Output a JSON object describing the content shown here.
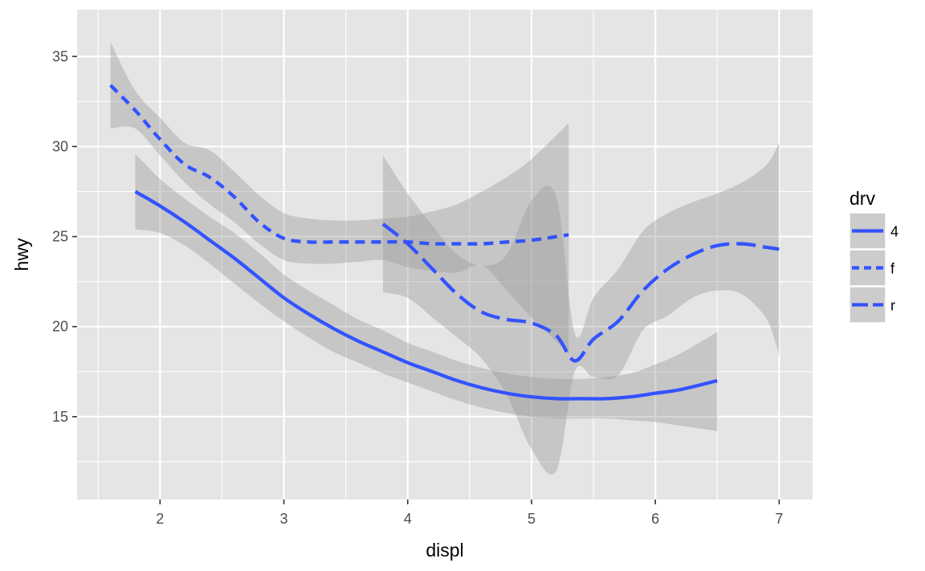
{
  "chart_data": {
    "type": "line",
    "xlabel": "displ",
    "ylabel": "hwy",
    "xlim": [
      1.33,
      7.27
    ],
    "ylim": [
      10.4,
      37.6
    ],
    "x_ticks": [
      2,
      3,
      4,
      5,
      6,
      7
    ],
    "y_ticks": [
      15,
      20,
      25,
      30,
      35
    ],
    "x_tick_labels": [
      "2",
      "3",
      "4",
      "5",
      "6",
      "7"
    ],
    "y_tick_labels": [
      "15",
      "20",
      "25",
      "30",
      "35"
    ],
    "grid": true,
    "panel_background": "#e5e5e5",
    "grid_color": "#ffffff",
    "line_color": "#3353ff",
    "ribbon_color": "#999999",
    "legend": {
      "title": "drv",
      "position": "right",
      "entries": [
        {
          "label": "4",
          "linetype": "solid"
        },
        {
          "label": "f",
          "linetype": "dashed"
        },
        {
          "label": "r",
          "linetype": "longdash"
        }
      ]
    },
    "series": [
      {
        "name": "4",
        "linetype": "solid",
        "x": [
          1.8,
          2.0,
          2.2,
          2.4,
          2.6,
          2.8,
          3.0,
          3.2,
          3.4,
          3.6,
          3.8,
          4.0,
          4.2,
          4.4,
          4.6,
          4.8,
          5.0,
          5.2,
          5.4,
          5.6,
          5.8,
          6.0,
          6.2,
          6.5
        ],
        "y": [
          27.5,
          26.7,
          25.8,
          24.8,
          23.8,
          22.7,
          21.6,
          20.7,
          19.9,
          19.2,
          18.6,
          18.0,
          17.5,
          17.0,
          16.6,
          16.3,
          16.1,
          16.0,
          16.0,
          16.0,
          16.1,
          16.3,
          16.5,
          17.0
        ],
        "lower": [
          25.4,
          25.2,
          24.5,
          23.5,
          22.4,
          21.3,
          20.3,
          19.4,
          18.6,
          18.0,
          17.4,
          16.9,
          16.4,
          15.9,
          15.5,
          15.2,
          15.0,
          14.9,
          14.9,
          14.9,
          14.8,
          14.7,
          14.5,
          14.2
        ],
        "upper": [
          29.6,
          28.2,
          27.1,
          26.1,
          25.2,
          24.1,
          22.9,
          22.0,
          21.2,
          20.4,
          19.8,
          19.1,
          18.6,
          18.1,
          17.7,
          17.4,
          17.2,
          17.1,
          17.1,
          17.2,
          17.4,
          17.9,
          18.5,
          19.7
        ]
      },
      {
        "name": "f",
        "linetype": "dashed",
        "x": [
          1.6,
          1.8,
          2.0,
          2.2,
          2.4,
          2.6,
          2.8,
          3.0,
          3.2,
          3.4,
          3.6,
          3.8,
          4.0,
          4.2,
          4.4,
          4.6,
          4.8,
          5.0,
          5.3
        ],
        "y": [
          33.4,
          32.0,
          30.4,
          29.0,
          28.3,
          27.2,
          25.8,
          24.9,
          24.7,
          24.7,
          24.7,
          24.7,
          24.7,
          24.6,
          24.6,
          24.6,
          24.7,
          24.8,
          25.1
        ],
        "lower": [
          31.0,
          31.0,
          29.5,
          28.0,
          26.8,
          25.8,
          24.6,
          23.7,
          23.5,
          23.5,
          23.6,
          23.7,
          23.3,
          23.1,
          23.0,
          23.4,
          22.0,
          20.5,
          18.5
        ],
        "upper": [
          35.8,
          33.1,
          31.6,
          30.2,
          29.8,
          28.6,
          27.3,
          26.3,
          26.0,
          25.9,
          25.9,
          26.0,
          26.1,
          26.4,
          26.8,
          27.5,
          28.3,
          29.3,
          31.3
        ]
      },
      {
        "name": "r",
        "linetype": "longdash",
        "x": [
          3.8,
          4.0,
          4.2,
          4.4,
          4.6,
          4.8,
          5.0,
          5.2,
          5.35,
          5.5,
          5.7,
          5.9,
          6.1,
          6.3,
          6.5,
          6.7,
          6.9,
          7.0
        ],
        "y": [
          25.7,
          24.6,
          23.2,
          21.8,
          20.8,
          20.4,
          20.2,
          19.5,
          18.1,
          19.3,
          20.3,
          22.0,
          23.2,
          24.0,
          24.5,
          24.6,
          24.4,
          24.3
        ],
        "lower": [
          21.9,
          21.6,
          20.5,
          19.4,
          18.2,
          16.2,
          13.2,
          12.0,
          17.5,
          17.2,
          17.3,
          19.8,
          20.6,
          21.6,
          22.0,
          21.8,
          20.4,
          18.4
        ],
        "upper": [
          29.5,
          27.4,
          25.6,
          24.0,
          23.4,
          24.0,
          27.0,
          27.2,
          19.6,
          21.6,
          23.2,
          25.3,
          26.3,
          26.9,
          27.4,
          28.0,
          29.0,
          30.2
        ]
      }
    ]
  }
}
